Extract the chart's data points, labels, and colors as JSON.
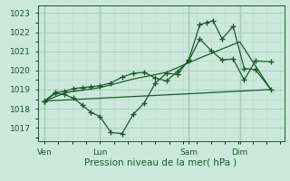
{
  "bg_color": "#cce8dc",
  "grid_color_major": "#aacfbf",
  "grid_color_minor": "#bbdacc",
  "line_color": "#1a5c28",
  "xlabel": "Pression niveau de la mer( hPa )",
  "yticks": [
    1017,
    1018,
    1019,
    1020,
    1021,
    1022,
    1023
  ],
  "xtick_labels": [
    "Ven",
    "Lun",
    "Sam",
    "Dim"
  ],
  "xtick_positions": [
    0,
    2.5,
    6.5,
    8.8
  ],
  "ylim": [
    1016.3,
    1023.4
  ],
  "xlim": [
    -0.3,
    10.8
  ],
  "vlines": [
    0,
    2.5,
    6.5,
    8.8
  ],
  "series1_x": [
    0.0,
    0.5,
    0.9,
    1.3,
    1.7,
    2.1,
    2.5,
    3.0,
    3.5,
    4.0,
    4.5,
    5.0,
    5.5,
    6.0,
    6.5,
    7.0,
    7.5,
    8.0,
    8.5,
    9.0,
    9.5,
    10.2
  ],
  "series1_y": [
    1018.4,
    1018.85,
    1018.9,
    1019.05,
    1019.1,
    1019.15,
    1019.2,
    1019.35,
    1019.65,
    1019.85,
    1019.9,
    1019.6,
    1019.45,
    1019.95,
    1020.5,
    1021.65,
    1021.05,
    1020.55,
    1020.6,
    1019.5,
    1020.5,
    1020.45
  ],
  "series2_x": [
    0.0,
    0.5,
    0.9,
    1.3,
    1.7,
    2.1,
    2.5,
    3.0,
    3.5,
    4.0,
    4.5,
    5.0,
    5.5,
    6.0,
    6.5,
    7.0,
    7.3,
    7.6,
    8.0,
    8.5,
    9.0,
    9.5,
    10.2
  ],
  "series2_y": [
    1018.4,
    1018.8,
    1018.75,
    1018.55,
    1018.2,
    1017.8,
    1017.6,
    1016.75,
    1016.7,
    1017.7,
    1018.3,
    1019.35,
    1019.85,
    1019.8,
    1020.55,
    1022.4,
    1022.5,
    1022.6,
    1021.65,
    1022.3,
    1020.1,
    1020.05,
    1019.0
  ],
  "series3_x": [
    0.0,
    10.2
  ],
  "series3_y": [
    1018.4,
    1019.0
  ],
  "series4_x": [
    0.0,
    1.0,
    2.5,
    4.0,
    5.5,
    7.0,
    8.8,
    10.2
  ],
  "series4_y": [
    1018.4,
    1018.85,
    1019.1,
    1019.55,
    1019.9,
    1020.65,
    1021.5,
    1019.0
  ],
  "xlabel_fontsize": 7.5,
  "tick_fontsize": 6.5
}
